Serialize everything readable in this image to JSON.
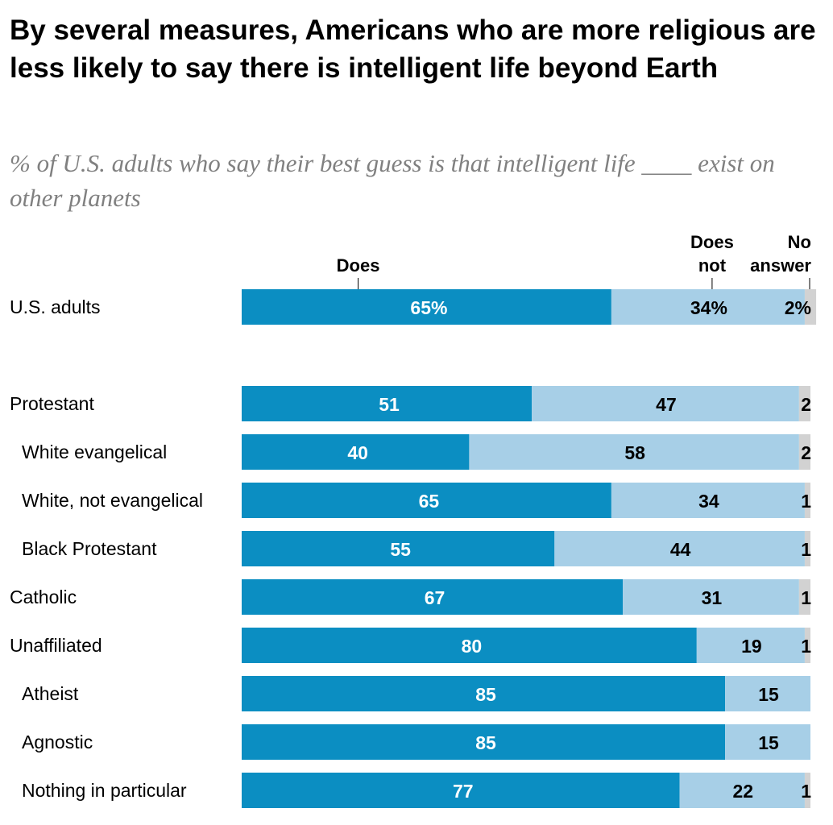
{
  "title": "By several measures, Americans who are more religious are less likely to say there is intelligent life beyond Earth",
  "subtitle": "% of U.S. adults who say their best guess is that intelligent life ____ exist on other planets",
  "colors": {
    "does": "#0b8ec2",
    "does_not": "#a7cfe7",
    "no_answer": "#d2d2d2",
    "label_light": "#ffffff",
    "label_dark": "#000000"
  },
  "chart_data": {
    "type": "bar",
    "orientation": "horizontal",
    "stacked": true,
    "title": "By several measures, Americans who are more religious are less likely to say there is intelligent life beyond Earth",
    "subtitle": "% of U.S. adults who say their best guess is that intelligent life ____ exist on other planets",
    "legend_position": "top",
    "xlim": [
      0,
      100
    ],
    "grid": false,
    "series": [
      {
        "name": "Does",
        "legend_label": [
          "Does"
        ],
        "color": "#0b8ec2"
      },
      {
        "name": "Does not",
        "legend_label": [
          "Does",
          "not"
        ],
        "color": "#a7cfe7"
      },
      {
        "name": "No answer",
        "legend_label": [
          "No",
          "answer"
        ],
        "color": "#d2d2d2"
      }
    ],
    "rows": [
      {
        "label": "U.S. adults",
        "indent": false,
        "group_gap_after": true,
        "values": [
          65,
          34,
          2
        ],
        "labels": [
          "65%",
          "34%",
          "2%"
        ]
      },
      {
        "label": "Protestant",
        "indent": false,
        "values": [
          51,
          47,
          2
        ],
        "labels": [
          "51",
          "47",
          "2"
        ]
      },
      {
        "label": "White evangelical",
        "indent": true,
        "values": [
          40,
          58,
          2
        ],
        "labels": [
          "40",
          "58",
          "2"
        ]
      },
      {
        "label": "White, not evangelical",
        "indent": true,
        "values": [
          65,
          34,
          1
        ],
        "labels": [
          "65",
          "34",
          "1"
        ]
      },
      {
        "label": "Black Protestant",
        "indent": true,
        "values": [
          55,
          44,
          1
        ],
        "labels": [
          "55",
          "44",
          "1"
        ]
      },
      {
        "label": "Catholic",
        "indent": false,
        "values": [
          67,
          31,
          1
        ],
        "labels": [
          "67",
          "31",
          "1"
        ]
      },
      {
        "label": "Unaffiliated",
        "indent": false,
        "values": [
          80,
          19,
          1
        ],
        "labels": [
          "80",
          "19",
          "1"
        ]
      },
      {
        "label": "Atheist",
        "indent": true,
        "values": [
          85,
          15,
          0
        ],
        "labels": [
          "85",
          "15",
          ""
        ]
      },
      {
        "label": "Agnostic",
        "indent": true,
        "values": [
          85,
          15,
          0
        ],
        "labels": [
          "85",
          "15",
          ""
        ]
      },
      {
        "label": "Nothing in particular",
        "indent": true,
        "values": [
          77,
          22,
          1
        ],
        "labels": [
          "77",
          "22",
          "1"
        ]
      }
    ]
  }
}
